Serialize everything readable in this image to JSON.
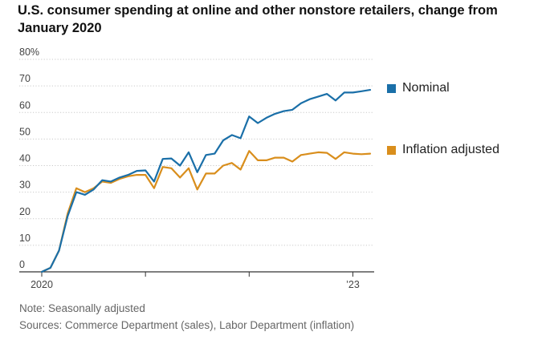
{
  "title": "U.S. consumer spending at online and other nonstore retailers, change from January 2020",
  "note": "Note: Seasonally adjusted",
  "sources": "Sources: Commerce Department (sales), Labor Department (inflation)",
  "colors": {
    "nominal": "#1a6fa8",
    "adjusted": "#d98e1c",
    "grid": "#c9c9c9",
    "axis": "#333333",
    "tick_text": "#444444"
  },
  "chart_data": {
    "type": "line",
    "x_start": "2020-01",
    "x_tick_labels": [
      {
        "month_index": 0,
        "label": "2020"
      },
      {
        "month_index": 36,
        "label": "’23"
      }
    ],
    "y_ticks": [
      0,
      10,
      20,
      30,
      40,
      50,
      60,
      70,
      80
    ],
    "y_tick_labels": [
      "0",
      "10",
      "20",
      "30",
      "40",
      "50",
      "60",
      "70",
      "80%"
    ],
    "ylim": [
      0,
      80
    ],
    "legend_position": "right",
    "series": [
      {
        "name": "Nominal",
        "color_key": "nominal",
        "values": [
          0,
          1.5,
          8,
          21,
          30,
          29,
          31,
          34.5,
          34,
          35.5,
          36.5,
          38,
          38.2,
          34,
          42.5,
          42.7,
          40,
          45,
          37.5,
          44,
          44.5,
          49.5,
          51.5,
          50.3,
          58.5,
          56,
          58,
          59.5,
          60.5,
          61,
          63.5,
          65,
          66,
          67,
          64.5,
          67.5,
          67.5,
          68,
          68.5
        ]
      },
      {
        "name": "Inflation adjusted",
        "color_key": "adjusted",
        "values": [
          0,
          1.5,
          8,
          22,
          31.5,
          30,
          31.5,
          34,
          33.5,
          35,
          36,
          36.5,
          36.5,
          31.5,
          39.5,
          39,
          35.5,
          39,
          31,
          37,
          37,
          40,
          41,
          38.5,
          45.5,
          42,
          42,
          43,
          43,
          41.5,
          44,
          44.5,
          45,
          44.8,
          42.5,
          45,
          44.5,
          44.3,
          44.5
        ]
      }
    ]
  }
}
